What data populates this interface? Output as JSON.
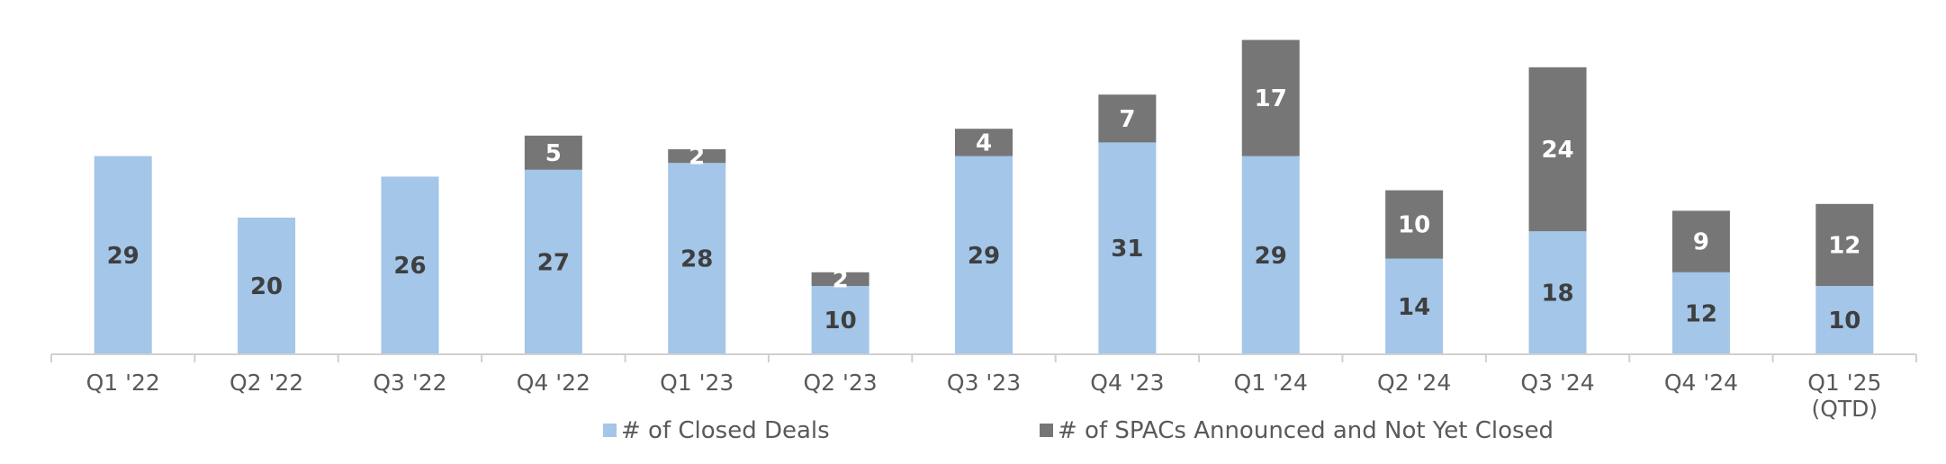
{
  "chart_data": {
    "type": "bar",
    "stacked": true,
    "title": "",
    "xlabel": "",
    "ylabel": "",
    "ylim": [
      0,
      48
    ],
    "grid": false,
    "legend_position": "bottom",
    "categories": [
      "Q1 '22",
      "Q2 '22",
      "Q3 '22",
      "Q4 '22",
      "Q1 '23",
      "Q2 '23",
      "Q3 '23",
      "Q4 '23",
      "Q1 '24",
      "Q2 '24",
      "Q3 '24",
      "Q4 '24",
      "Q1 '25\n(QTD)"
    ],
    "series": [
      {
        "name": "# of Closed Deals",
        "color": "#a3c6e9",
        "label_color": "#3f3f3f",
        "values": [
          29,
          20,
          26,
          27,
          28,
          10,
          29,
          31,
          29,
          14,
          18,
          12,
          10
        ]
      },
      {
        "name": "# of SPACs Announced and Not Yet Closed",
        "color": "#767676",
        "label_color": "#ffffff",
        "values": [
          0,
          0,
          0,
          5,
          2,
          2,
          4,
          7,
          17,
          10,
          24,
          9,
          12
        ]
      }
    ]
  }
}
